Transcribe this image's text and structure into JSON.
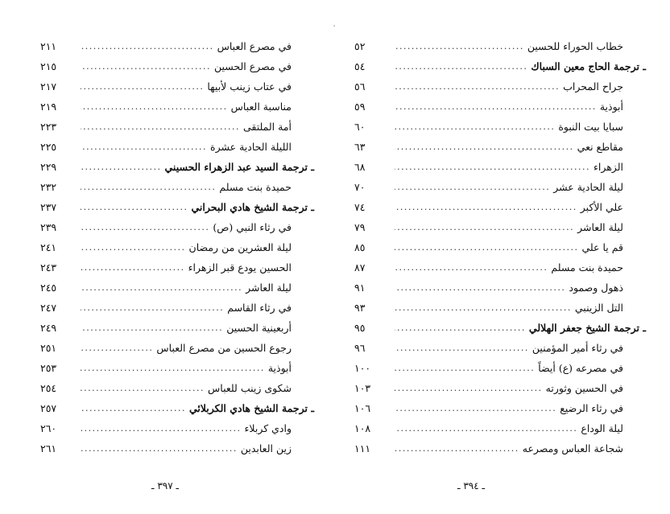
{
  "left_page": {
    "entries": [
      {
        "title": "في مصرع العباس",
        "page": "٢١١",
        "type": "sub"
      },
      {
        "title": "في مصرع الحسين",
        "page": "٢١٥",
        "type": "sub"
      },
      {
        "title": "في عتاب زينب لأبيها",
        "page": "٢١٧",
        "type": "sub"
      },
      {
        "title": "مناسبة العباس",
        "page": "٢١٩",
        "type": "sub"
      },
      {
        "title": "أمة الملتقى",
        "page": "٢٢٣",
        "type": "sub"
      },
      {
        "title": "الليلة الحادية عشرة",
        "page": "٢٢٥",
        "type": "sub"
      },
      {
        "title": "ـ ترجمة السيد عبد الزهراء الحسيني",
        "page": "٢٢٩",
        "type": "head"
      },
      {
        "title": "حميدة بنت مسلم",
        "page": "٢٣٢",
        "type": "sub"
      },
      {
        "title": "ـ ترجمة الشيخ هادي البحراني",
        "page": "٢٣٧",
        "type": "head"
      },
      {
        "title": "في رثاء النبي (ص)",
        "page": "٢٣٩",
        "type": "sub"
      },
      {
        "title": "ليلة العشرين من رمضان",
        "page": "٢٤١",
        "type": "sub"
      },
      {
        "title": "الحسين يودع قبر الزهراء",
        "page": "٢٤٣",
        "type": "sub"
      },
      {
        "title": "ليلة العاشر",
        "page": "٢٤٥",
        "type": "sub"
      },
      {
        "title": "في رثاء القاسم",
        "page": "٢٤٧",
        "type": "sub"
      },
      {
        "title": "أربعينية الحسين",
        "page": "٢٤٩",
        "type": "sub"
      },
      {
        "title": "رجوع الحسين من مصرع العباس",
        "page": "٢٥١",
        "type": "sub"
      },
      {
        "title": "أبوذية",
        "page": "٢٥٣",
        "type": "sub"
      },
      {
        "title": "شكوى زينب للعباس",
        "page": "٢٥٤",
        "type": "sub"
      },
      {
        "title": "ـ ترجمة الشيخ هادي الكربلائي",
        "page": "٢٥٧",
        "type": "head"
      },
      {
        "title": "وادي كربلاء",
        "page": "٢٦٠",
        "type": "sub"
      },
      {
        "title": "زين العابدين",
        "page": "٢٦١",
        "type": "sub"
      }
    ],
    "page_number": "ـ ٣٩٧ ـ"
  },
  "right_page": {
    "entries": [
      {
        "title": "خطاب الحوراء للحسين",
        "page": "٥٢",
        "type": "sub"
      },
      {
        "title": "ـ ترجمة الحاج معين السباك",
        "page": "٥٤",
        "type": "head"
      },
      {
        "title": "جراح المحراب",
        "page": "٥٦",
        "type": "sub"
      },
      {
        "title": "أبوذية",
        "page": "٥٩",
        "type": "sub"
      },
      {
        "title": "سبايا بيت النبوة",
        "page": "٦٠",
        "type": "sub"
      },
      {
        "title": "مقاطع نعي",
        "page": "٦٣",
        "type": "sub"
      },
      {
        "title": "الزهراء",
        "page": "٦٨",
        "type": "sub"
      },
      {
        "title": "ليلة الحادية عشر",
        "page": "٧٠",
        "type": "sub"
      },
      {
        "title": "علي الأكبر",
        "page": "٧٤",
        "type": "sub"
      },
      {
        "title": "ليلة العاشر",
        "page": "٧٩",
        "type": "sub"
      },
      {
        "title": "قم يا علي",
        "page": "٨٥",
        "type": "sub"
      },
      {
        "title": "حميدة بنت مسلم",
        "page": "٨٧",
        "type": "sub"
      },
      {
        "title": "ذهول وصمود",
        "page": "٩١",
        "type": "sub"
      },
      {
        "title": "التل الزينبي",
        "page": "٩٣",
        "type": "sub"
      },
      {
        "title": "ـ ترجمة الشيخ جعفر الهلالي",
        "page": "٩٥",
        "type": "head"
      },
      {
        "title": "في رثاء أمير المؤمنين",
        "page": "٩٦",
        "type": "sub"
      },
      {
        "title": "في مصرعه (ع) أيضاً",
        "page": "١٠٠",
        "type": "sub"
      },
      {
        "title": "في الحسين وثورته",
        "page": "١٠٣",
        "type": "sub"
      },
      {
        "title": "في رثاء الرضيع",
        "page": "١٠٦",
        "type": "sub"
      },
      {
        "title": "ليلة الوداع",
        "page": "١٠٨",
        "type": "sub"
      },
      {
        "title": "شجاعة العباس ومصرعه",
        "page": "١١١",
        "type": "sub"
      }
    ],
    "page_number": "ـ ٣٩٤ ـ"
  }
}
